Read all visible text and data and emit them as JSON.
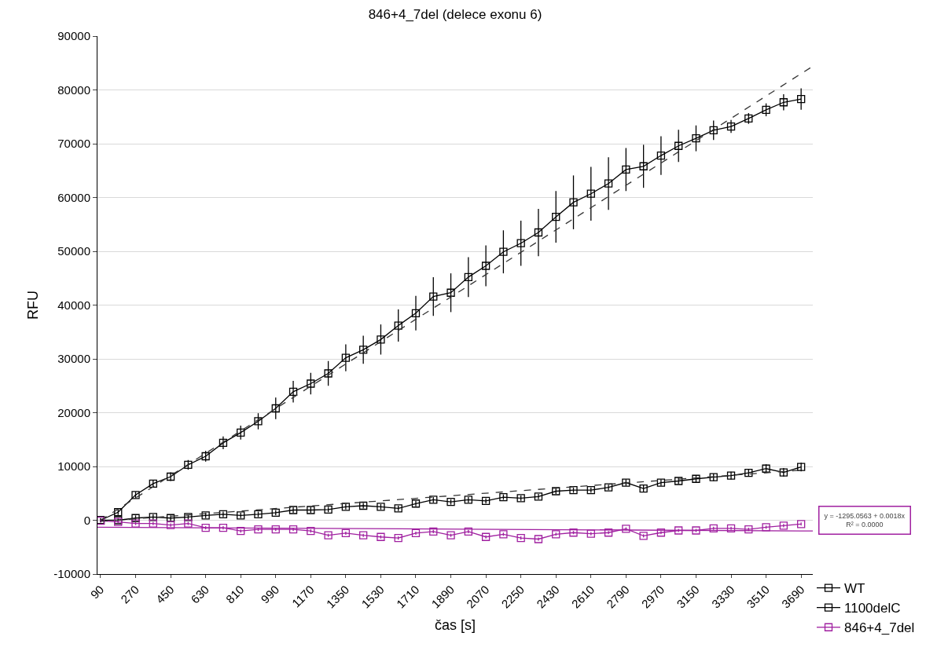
{
  "chart_data": {
    "type": "line",
    "title": "846+4_7del (delece exonu 6)",
    "xlabel": "čas [s]",
    "ylabel": "RFU",
    "x": [
      90,
      180,
      270,
      360,
      450,
      540,
      630,
      720,
      810,
      900,
      990,
      1080,
      1170,
      1260,
      1350,
      1440,
      1530,
      1620,
      1710,
      1800,
      1890,
      1980,
      2070,
      2160,
      2250,
      2340,
      2430,
      2520,
      2610,
      2700,
      2790,
      2880,
      2970,
      3060,
      3150,
      3240,
      3330,
      3420,
      3510,
      3600,
      3690
    ],
    "xlim": [
      74,
      3750
    ],
    "xticks": [
      90,
      270,
      450,
      630,
      810,
      990,
      1170,
      1350,
      1530,
      1710,
      1890,
      2070,
      2250,
      2430,
      2610,
      2790,
      2970,
      3150,
      3330,
      3510,
      3690
    ],
    "ylim": [
      -10000,
      90000
    ],
    "yticks": [
      -10000,
      0,
      10000,
      20000,
      30000,
      40000,
      50000,
      60000,
      70000,
      80000,
      90000
    ],
    "grid": "y",
    "legend": "bottom right",
    "marker": "square",
    "line_style": "solid",
    "annotations": [
      "y = -1295.0563 + 0.0018x\nR² = 0.0000"
    ],
    "series": [
      {
        "name": "WT",
        "color": "#000000",
        "values": [
          0,
          1500,
          4700,
          6800,
          8100,
          10300,
          11900,
          14400,
          16300,
          18400,
          20800,
          23900,
          25400,
          27300,
          30200,
          31700,
          33600,
          36200,
          38500,
          41600,
          42300,
          45200,
          47300,
          49900,
          51500,
          53500,
          56400,
          59100,
          60700,
          62600,
          65200,
          65800,
          67800,
          69600,
          71000,
          72500,
          73200,
          74700,
          76300,
          77700,
          78300
        ],
        "errors": [
          300,
          500,
          600,
          700,
          800,
          900,
          1000,
          1200,
          1300,
          1500,
          2000,
          2000,
          2000,
          2300,
          2500,
          2600,
          2800,
          3000,
          3200,
          3600,
          3600,
          3700,
          3800,
          4000,
          4200,
          4400,
          4800,
          5000,
          5000,
          4900,
          4000,
          4000,
          3600,
          3000,
          2400,
          1800,
          1200,
          1000,
          1200,
          1500,
          2000
        ]
      },
      {
        "name": "1100delC",
        "color": "#000000",
        "values": [
          0,
          0,
          400,
          600,
          400,
          600,
          900,
          1100,
          900,
          1100,
          1400,
          1900,
          1900,
          2000,
          2500,
          2700,
          2500,
          2200,
          3100,
          3800,
          3400,
          3800,
          3600,
          4300,
          4100,
          4400,
          5400,
          5600,
          5600,
          6100,
          7000,
          5900,
          7000,
          7300,
          7700,
          8000,
          8300,
          8800,
          9600,
          8900,
          9900
        ],
        "errors": [
          400,
          400,
          500,
          500,
          500,
          500,
          500,
          500,
          500,
          500,
          500,
          500,
          500,
          500,
          500,
          500,
          500,
          500,
          500,
          500,
          500,
          500,
          500,
          500,
          500,
          500,
          500,
          500,
          500,
          500,
          600,
          600,
          600,
          600,
          700,
          700,
          700,
          700,
          800,
          800,
          800
        ]
      },
      {
        "name": "846+4_7del",
        "color": "#a020a0",
        "values": [
          -100,
          -300,
          -600,
          -600,
          -900,
          -600,
          -1400,
          -1400,
          -2000,
          -1700,
          -1700,
          -1700,
          -2000,
          -2800,
          -2400,
          -2800,
          -3100,
          -3300,
          -2400,
          -2100,
          -2800,
          -2100,
          -3100,
          -2600,
          -3300,
          -3500,
          -2600,
          -2300,
          -2500,
          -2300,
          -1600,
          -2900,
          -2300,
          -1900,
          -1900,
          -1500,
          -1500,
          -1700,
          -1300,
          -1000,
          -700
        ],
        "errors": [
          300,
          300,
          300,
          300,
          300,
          300,
          300,
          300,
          300,
          300,
          300,
          300,
          300,
          300,
          300,
          300,
          300,
          300,
          300,
          300,
          300,
          300,
          300,
          300,
          300,
          300,
          300,
          300,
          300,
          300,
          300,
          300,
          300,
          300,
          300,
          300,
          300,
          300,
          300,
          300,
          300
        ]
      },
      {
        "type": "line",
        "color": "#333333",
        "line_style": "dashed",
        "marker": "none",
        "x": [
          90,
          3750
        ],
        "values": [
          0,
          84400
        ]
      },
      {
        "type": "line",
        "color": "#333333",
        "line_style": "dashed",
        "marker": "none",
        "x": [
          90,
          3690
        ],
        "values": [
          -200,
          9300
        ]
      },
      {
        "type": "line",
        "color": "#a020a0",
        "line_style": "solid",
        "marker": "none",
        "x": [
          74,
          3750
        ],
        "values": [
          -1300,
          -2000
        ]
      }
    ]
  }
}
